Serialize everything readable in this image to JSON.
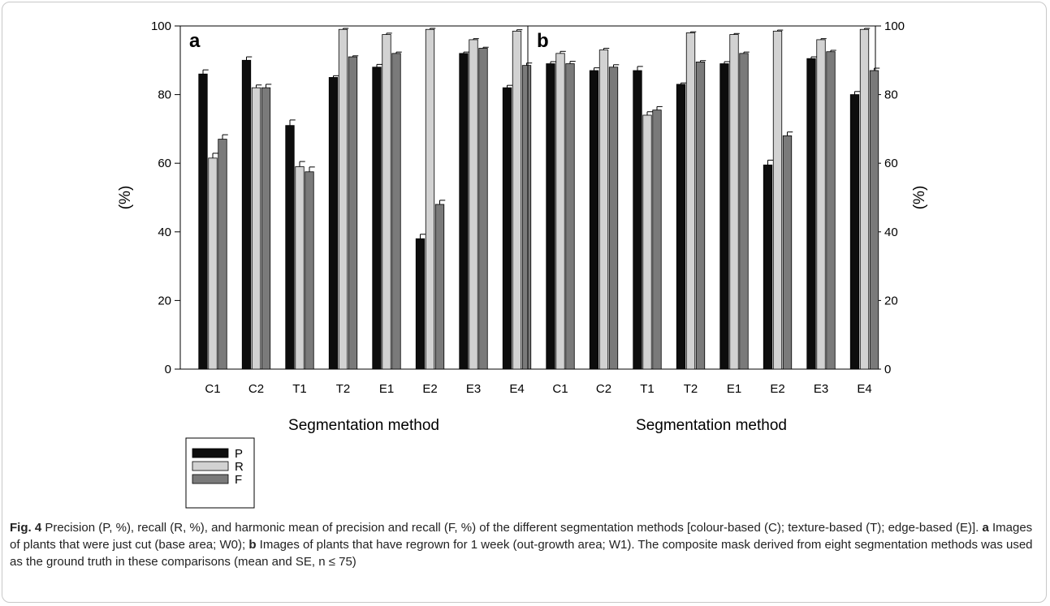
{
  "chart_data": [
    {
      "type": "bar",
      "panel": "a",
      "categories": [
        "C1",
        "C2",
        "T1",
        "T2",
        "E1",
        "E2",
        "E3",
        "E4"
      ],
      "series": [
        {
          "name": "P",
          "values": [
            86,
            90,
            71,
            85,
            88,
            38,
            92,
            82
          ],
          "se": [
            1.2,
            1.0,
            1.6,
            0.5,
            0.8,
            1.3,
            0.4,
            0.7
          ]
        },
        {
          "name": "R",
          "values": [
            61.5,
            82,
            59,
            99,
            97.5,
            99,
            96,
            98.5
          ],
          "se": [
            1.4,
            0.8,
            1.5,
            0.3,
            0.4,
            0.3,
            0.3,
            0.4
          ]
        },
        {
          "name": "F",
          "values": [
            67,
            82,
            57.5,
            91,
            92,
            48,
            93.5,
            88.5
          ],
          "se": [
            1.3,
            1.0,
            1.4,
            0.3,
            0.4,
            1.2,
            0.3,
            0.7
          ]
        }
      ],
      "xlabel": "Segmentation method",
      "ylabel": "(%)",
      "ylim": [
        0,
        100
      ],
      "yticks": [
        0,
        20,
        40,
        60,
        80,
        100
      ],
      "yaxis_side": "left",
      "grid": false
    },
    {
      "type": "bar",
      "panel": "b",
      "categories": [
        "C1",
        "C2",
        "T1",
        "T2",
        "E1",
        "E2",
        "E3",
        "E4"
      ],
      "series": [
        {
          "name": "P",
          "values": [
            89,
            87,
            87,
            83,
            89,
            59.5,
            90.5,
            80
          ],
          "se": [
            0.6,
            0.8,
            1.2,
            0.4,
            0.6,
            1.4,
            0.5,
            0.9
          ]
        },
        {
          "name": "R",
          "values": [
            92,
            93,
            74,
            98,
            97.5,
            98.5,
            96,
            99
          ],
          "se": [
            0.6,
            0.5,
            1.0,
            0.3,
            0.3,
            0.3,
            0.3,
            0.3
          ]
        },
        {
          "name": "F",
          "values": [
            89,
            88,
            75.5,
            89.5,
            92,
            68,
            92.5,
            87
          ],
          "se": [
            0.7,
            0.7,
            1.0,
            0.4,
            0.4,
            1.1,
            0.4,
            0.7
          ]
        }
      ],
      "xlabel": "Segmentation method",
      "ylabel": "(%)",
      "ylim": [
        0,
        100
      ],
      "yticks": [
        0,
        20,
        40,
        60,
        80,
        100
      ],
      "yaxis_side": "right",
      "grid": false
    }
  ],
  "legend": {
    "placement": "bottom-left",
    "entries": [
      {
        "label": "P",
        "color": "#0d0d0d"
      },
      {
        "label": "R",
        "color": "#d2d2d2"
      },
      {
        "label": "F",
        "color": "#7a7a7a"
      }
    ]
  },
  "caption": {
    "fig": "Fig. 4",
    "part1": " Precision (P, %), recall (R, %), and harmonic mean of precision and recall (F, %) of the different segmentation methods [colour-based (C); texture-based (T); edge-based (E)]. ",
    "a": "a",
    "part2": " Images of plants that were just cut (base area; W0); ",
    "b": "b",
    "part3": " Images of plants that have regrown for 1 week (out-growth area; W1). The composite mask derived from eight segmentation methods was used as the ground truth in these comparisons (mean and SE, n ≤ 75)"
  }
}
